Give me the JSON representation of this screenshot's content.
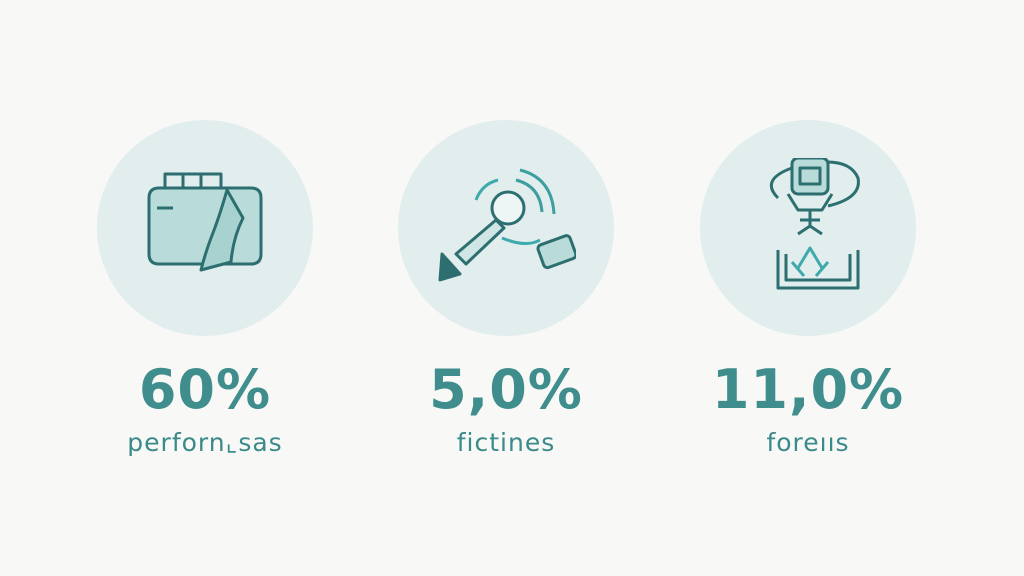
{
  "colors": {
    "background": "#f8f8f6",
    "circle": "#e1eeed",
    "accent": "#3f8d8c",
    "icon_stroke": "#2d6f70",
    "icon_fill": "#b9dbd9"
  },
  "stats": [
    {
      "value": "60%",
      "label": "perforn⌞sas",
      "icon": "bed-box-icon"
    },
    {
      "value": "5,0%",
      "label": "fictines",
      "icon": "magnifier-signal-icon"
    },
    {
      "value": "11,0%",
      "label": "foreııs",
      "icon": "chip-tray-icon"
    }
  ]
}
